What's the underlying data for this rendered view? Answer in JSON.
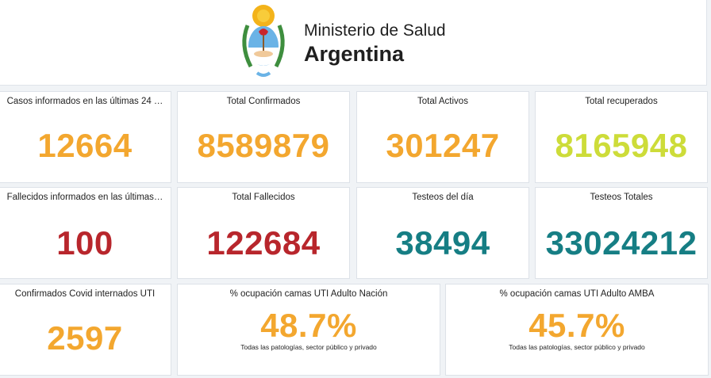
{
  "header": {
    "ministry": "Ministerio de Salud",
    "country": "Argentina",
    "logo_icon": "coat-of-arms-argentina"
  },
  "colors": {
    "orange": "#f3a72f",
    "yellow_green": "#cddc39",
    "red": "#b8262c",
    "teal": "#167e84"
  },
  "row1": [
    {
      "label": "Casos informados en las últimas 24 …",
      "value": "12664"
    },
    {
      "label": "Total Confirmados",
      "value": "8589879"
    },
    {
      "label": "Total Activos",
      "value": "301247"
    },
    {
      "label": "Total recuperados",
      "value": "8165948"
    }
  ],
  "row2": [
    {
      "label": "Fallecidos informados en las últimas…",
      "value": "100"
    },
    {
      "label": "Total Fallecidos",
      "value": "122684"
    },
    {
      "label": "Testeos del día",
      "value": "38494"
    },
    {
      "label": "Testeos Totales",
      "value": "33024212"
    }
  ],
  "row3": [
    {
      "label": "Confirmados Covid internados UTI",
      "value": "2597"
    },
    {
      "label": "% ocupación camas UTI Adulto Nación",
      "value": "48.7%",
      "sub": "Todas las patologías, sector público y privado"
    },
    {
      "label": "% ocupación camas UTI Adulto AMBA",
      "value": "45.7%",
      "sub": "Todas las patologías, sector público y privado"
    }
  ]
}
